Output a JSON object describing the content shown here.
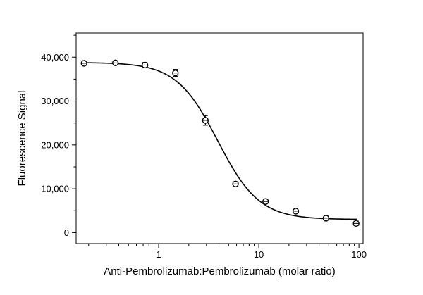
{
  "chart_data": {
    "type": "scatter",
    "title": "",
    "xlabel": "Anti-Pembrolizumab:Pembrolizumab (molar ratio)",
    "ylabel": "Fluorescence Signal",
    "xscale": "log",
    "xlim": [
      0.15,
      110
    ],
    "ylim": [
      -2500,
      45500
    ],
    "grid": false,
    "legend": "none",
    "x_ticks": [
      {
        "value": 1,
        "label": "1"
      },
      {
        "value": 10,
        "label": "10"
      },
      {
        "value": 100,
        "label": "100"
      }
    ],
    "y_ticks": [
      {
        "value": 0,
        "label": "0"
      },
      {
        "value": 10000,
        "label": "10,000"
      },
      {
        "value": 20000,
        "label": "20,000"
      },
      {
        "value": 30000,
        "label": "30,000"
      },
      {
        "value": 40000,
        "label": "40,000"
      }
    ],
    "series": [
      {
        "x": [
          0.18,
          0.37,
          0.73,
          1.47,
          2.93,
          5.86,
          11.7,
          23.4,
          46.9,
          93.8
        ],
        "y": [
          38600,
          38700,
          38200,
          36400,
          25600,
          11100,
          7100,
          4900,
          3300,
          2100
        ],
        "error": [
          400,
          400,
          600,
          800,
          1100,
          500,
          300,
          400,
          300,
          500
        ],
        "marker": "open-circle"
      }
    ],
    "fit": {
      "model": "4PL",
      "top": 38800,
      "bottom": 3000,
      "ec50": 3.9,
      "hill": 2.1
    },
    "colors": {
      "marker": "#000000",
      "line": "#000000",
      "axis": "#000000"
    }
  }
}
